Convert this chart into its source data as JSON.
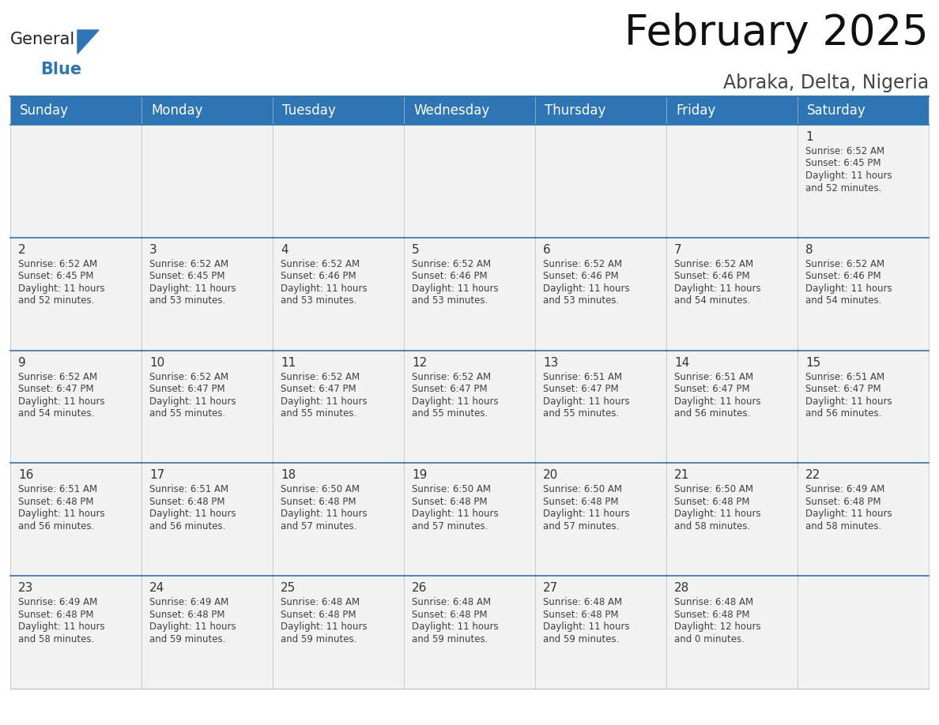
{
  "title": "February 2025",
  "subtitle": "Abraka, Delta, Nigeria",
  "header_color": "#2E75B6",
  "header_text_color": "#FFFFFF",
  "grid_line_color": "#2E75B6",
  "day_names": [
    "Sunday",
    "Monday",
    "Tuesday",
    "Wednesday",
    "Thursday",
    "Friday",
    "Saturday"
  ],
  "background_color": "#FFFFFF",
  "cell_bg_color": "#F2F2F2",
  "cell_text_color": "#404040",
  "day_number_color": "#333333",
  "border_color": "#BBBBBB",
  "calendar_data": [
    [
      null,
      null,
      null,
      null,
      null,
      null,
      {
        "day": "1",
        "sunrise": "6:52 AM",
        "sunset": "6:45 PM",
        "daylight_l1": "Daylight: 11 hours",
        "daylight_l2": "and 52 minutes."
      }
    ],
    [
      {
        "day": "2",
        "sunrise": "6:52 AM",
        "sunset": "6:45 PM",
        "daylight_l1": "Daylight: 11 hours",
        "daylight_l2": "and 52 minutes."
      },
      {
        "day": "3",
        "sunrise": "6:52 AM",
        "sunset": "6:45 PM",
        "daylight_l1": "Daylight: 11 hours",
        "daylight_l2": "and 53 minutes."
      },
      {
        "day": "4",
        "sunrise": "6:52 AM",
        "sunset": "6:46 PM",
        "daylight_l1": "Daylight: 11 hours",
        "daylight_l2": "and 53 minutes."
      },
      {
        "day": "5",
        "sunrise": "6:52 AM",
        "sunset": "6:46 PM",
        "daylight_l1": "Daylight: 11 hours",
        "daylight_l2": "and 53 minutes."
      },
      {
        "day": "6",
        "sunrise": "6:52 AM",
        "sunset": "6:46 PM",
        "daylight_l1": "Daylight: 11 hours",
        "daylight_l2": "and 53 minutes."
      },
      {
        "day": "7",
        "sunrise": "6:52 AM",
        "sunset": "6:46 PM",
        "daylight_l1": "Daylight: 11 hours",
        "daylight_l2": "and 54 minutes."
      },
      {
        "day": "8",
        "sunrise": "6:52 AM",
        "sunset": "6:46 PM",
        "daylight_l1": "Daylight: 11 hours",
        "daylight_l2": "and 54 minutes."
      }
    ],
    [
      {
        "day": "9",
        "sunrise": "6:52 AM",
        "sunset": "6:47 PM",
        "daylight_l1": "Daylight: 11 hours",
        "daylight_l2": "and 54 minutes."
      },
      {
        "day": "10",
        "sunrise": "6:52 AM",
        "sunset": "6:47 PM",
        "daylight_l1": "Daylight: 11 hours",
        "daylight_l2": "and 55 minutes."
      },
      {
        "day": "11",
        "sunrise": "6:52 AM",
        "sunset": "6:47 PM",
        "daylight_l1": "Daylight: 11 hours",
        "daylight_l2": "and 55 minutes."
      },
      {
        "day": "12",
        "sunrise": "6:52 AM",
        "sunset": "6:47 PM",
        "daylight_l1": "Daylight: 11 hours",
        "daylight_l2": "and 55 minutes."
      },
      {
        "day": "13",
        "sunrise": "6:51 AM",
        "sunset": "6:47 PM",
        "daylight_l1": "Daylight: 11 hours",
        "daylight_l2": "and 55 minutes."
      },
      {
        "day": "14",
        "sunrise": "6:51 AM",
        "sunset": "6:47 PM",
        "daylight_l1": "Daylight: 11 hours",
        "daylight_l2": "and 56 minutes."
      },
      {
        "day": "15",
        "sunrise": "6:51 AM",
        "sunset": "6:47 PM",
        "daylight_l1": "Daylight: 11 hours",
        "daylight_l2": "and 56 minutes."
      }
    ],
    [
      {
        "day": "16",
        "sunrise": "6:51 AM",
        "sunset": "6:48 PM",
        "daylight_l1": "Daylight: 11 hours",
        "daylight_l2": "and 56 minutes."
      },
      {
        "day": "17",
        "sunrise": "6:51 AM",
        "sunset": "6:48 PM",
        "daylight_l1": "Daylight: 11 hours",
        "daylight_l2": "and 56 minutes."
      },
      {
        "day": "18",
        "sunrise": "6:50 AM",
        "sunset": "6:48 PM",
        "daylight_l1": "Daylight: 11 hours",
        "daylight_l2": "and 57 minutes."
      },
      {
        "day": "19",
        "sunrise": "6:50 AM",
        "sunset": "6:48 PM",
        "daylight_l1": "Daylight: 11 hours",
        "daylight_l2": "and 57 minutes."
      },
      {
        "day": "20",
        "sunrise": "6:50 AM",
        "sunset": "6:48 PM",
        "daylight_l1": "Daylight: 11 hours",
        "daylight_l2": "and 57 minutes."
      },
      {
        "day": "21",
        "sunrise": "6:50 AM",
        "sunset": "6:48 PM",
        "daylight_l1": "Daylight: 11 hours",
        "daylight_l2": "and 58 minutes."
      },
      {
        "day": "22",
        "sunrise": "6:49 AM",
        "sunset": "6:48 PM",
        "daylight_l1": "Daylight: 11 hours",
        "daylight_l2": "and 58 minutes."
      }
    ],
    [
      {
        "day": "23",
        "sunrise": "6:49 AM",
        "sunset": "6:48 PM",
        "daylight_l1": "Daylight: 11 hours",
        "daylight_l2": "and 58 minutes."
      },
      {
        "day": "24",
        "sunrise": "6:49 AM",
        "sunset": "6:48 PM",
        "daylight_l1": "Daylight: 11 hours",
        "daylight_l2": "and 59 minutes."
      },
      {
        "day": "25",
        "sunrise": "6:48 AM",
        "sunset": "6:48 PM",
        "daylight_l1": "Daylight: 11 hours",
        "daylight_l2": "and 59 minutes."
      },
      {
        "day": "26",
        "sunrise": "6:48 AM",
        "sunset": "6:48 PM",
        "daylight_l1": "Daylight: 11 hours",
        "daylight_l2": "and 59 minutes."
      },
      {
        "day": "27",
        "sunrise": "6:48 AM",
        "sunset": "6:48 PM",
        "daylight_l1": "Daylight: 11 hours",
        "daylight_l2": "and 59 minutes."
      },
      {
        "day": "28",
        "sunrise": "6:48 AM",
        "sunset": "6:48 PM",
        "daylight_l1": "Daylight: 12 hours",
        "daylight_l2": "and 0 minutes."
      },
      null
    ]
  ],
  "logo_general_color": "#222222",
  "logo_blue_color": "#2E75B6",
  "title_fontsize": 38,
  "subtitle_fontsize": 17,
  "header_fontsize": 12,
  "day_num_fontsize": 11,
  "cell_text_fontsize": 8.5
}
